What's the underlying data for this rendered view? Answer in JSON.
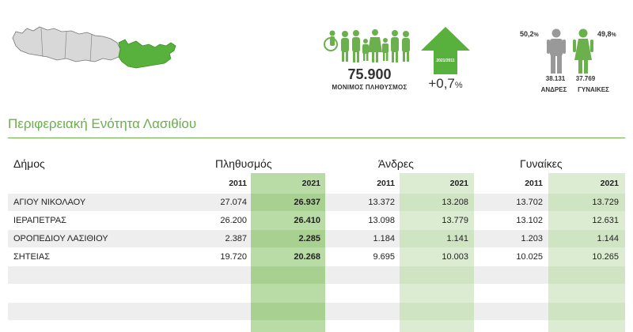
{
  "summary": {
    "population_total": "75.900",
    "population_label": "ΜΟΝΙΜΟΣ ΠΛΗΘΥΣΜΟΣ",
    "change_value": "+0,7",
    "change_unit": "%",
    "arrow_caption": "2021/2011",
    "male_pct": "50,2",
    "female_pct": "49,8",
    "male_count": "38.131",
    "female_count": "37.769",
    "male_label": "ΑΝΔΡΕΣ",
    "female_label": "ΓΥΝΑΙΚΕΣ"
  },
  "title": "Περιφερειακή Ενότητα Λασιθίου",
  "table": {
    "col_municipality": "Δήμος",
    "col_population": "Πληθυσμός",
    "col_men": "Άνδρες",
    "col_women": "Γυναίκες",
    "year_a": "2011",
    "year_b": "2021",
    "rows": [
      {
        "name": "ΑΓΙΟΥ ΝΙΚΟΛΑΟΥ",
        "pop2011": "27.074",
        "pop2021": "26.937",
        "men2011": "13.372",
        "men2021": "13.208",
        "women2011": "13.702",
        "women2021": "13.729"
      },
      {
        "name": "ΙΕΡΑΠΕΤΡΑΣ",
        "pop2011": "26.200",
        "pop2021": "26.410",
        "men2011": "13.098",
        "men2021": "13.779",
        "women2011": "13.102",
        "women2021": "12.631"
      },
      {
        "name": "ΟΡΟΠΕΔΙΟΥ ΛΑΣΙΘΙΟΥ",
        "pop2011": "2.387",
        "pop2021": "2.285",
        "men2011": "1.184",
        "men2021": "1.141",
        "women2011": "1.203",
        "women2021": "1.144"
      },
      {
        "name": "ΣΗΤΕΙΑΣ",
        "pop2011": "19.720",
        "pop2021": "20.268",
        "men2011": "9.695",
        "men2021": "10.003",
        "women2011": "10.025",
        "women2021": "10.265"
      }
    ]
  },
  "colors": {
    "accent": "#6ab04c",
    "map_highlight": "#58b13c",
    "map_base": "#d8d8d8",
    "pop_column": "#b9dca7",
    "men_women_2021_column": "#dcecd2",
    "row_stripe": "#eeeeee",
    "figure_gray": "#999999"
  },
  "icons": [
    "crete-map",
    "family-group-icon",
    "up-arrow-icon",
    "man-figure-icon",
    "woman-figure-icon"
  ]
}
